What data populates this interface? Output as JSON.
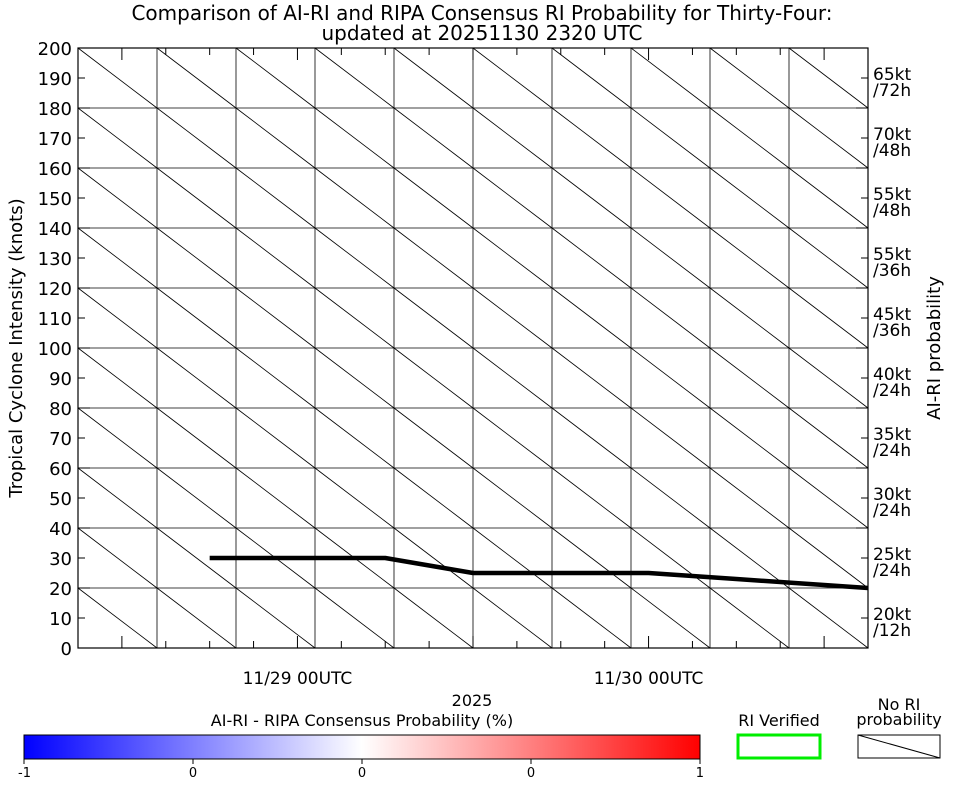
{
  "chart_data": {
    "type": "line",
    "title": "Comparison of AI-RI and RIPA Consensus RI Probability for Thirty-Four:",
    "subtitle": "updated at 20251130 2320 UTC",
    "ylabel": "Tropical Cyclone Intensity (knots)",
    "y2label": "AI-RI probability",
    "xlabel": "2025",
    "ylim": [
      0,
      200
    ],
    "yticks": [
      0,
      10,
      20,
      30,
      40,
      50,
      60,
      70,
      80,
      90,
      100,
      110,
      120,
      130,
      140,
      150,
      160,
      170,
      180,
      190,
      200
    ],
    "xlim": [
      -30,
      78
    ],
    "xticks": [
      {
        "x": 0,
        "label": "11/29 00UTC"
      },
      {
        "x": 48,
        "label": "11/30 00UTC"
      }
    ],
    "grid": true,
    "series": [
      {
        "x": [
          -12,
          12,
          24,
          48,
          60,
          72,
          78
        ],
        "y": [
          30,
          30,
          25,
          25,
          23,
          21,
          20
        ],
        "color": "#000000"
      }
    ],
    "threshold_labels": [
      {
        "line1": "20kt",
        "line2": "/12h"
      },
      {
        "line1": "25kt",
        "line2": "/24h"
      },
      {
        "line1": "30kt",
        "line2": "/24h"
      },
      {
        "line1": "35kt",
        "line2": "/24h"
      },
      {
        "line1": "40kt",
        "line2": "/24h"
      },
      {
        "line1": "45kt",
        "line2": "/36h"
      },
      {
        "line1": "55kt",
        "line2": "/36h"
      },
      {
        "line1": "55kt",
        "line2": "/48h"
      },
      {
        "line1": "70kt",
        "line2": "/48h"
      },
      {
        "line1": "65kt",
        "line2": "/72h"
      }
    ],
    "colorbar": {
      "label": "AI-RI - RIPA Consensus Probability (%)",
      "ticks": [
        "-1",
        "0",
        "0",
        "0",
        "1"
      ],
      "colors": [
        "#0000ff",
        "#ffffff",
        "#ff0000"
      ]
    },
    "legend": {
      "verified_label": "RI Verified",
      "verified_color": "#00ee00",
      "no_ri_line1": "No RI",
      "no_ri_line2": "probability"
    }
  }
}
